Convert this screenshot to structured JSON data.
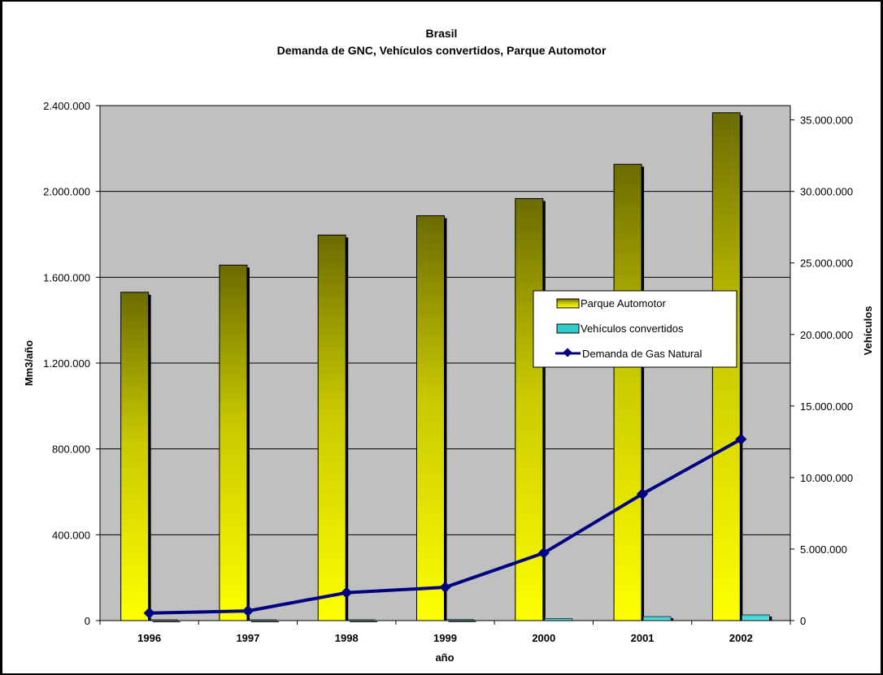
{
  "chart_data": {
    "type": "bar",
    "title": "Brasil",
    "subtitle": "Demanda de GNC, Vehículos convertidos, Parque Automotor",
    "xlabel": "año",
    "ylabel": "Mm3/año",
    "y2label": "Vehículos",
    "categories": [
      "1996",
      "1997",
      "1998",
      "1999",
      "2000",
      "2001",
      "2002"
    ],
    "ylim": [
      0,
      2400000
    ],
    "y2lim": [
      0,
      36000000
    ],
    "yticks": [
      "0",
      "400.000",
      "800.000",
      "1.200.000",
      "1.600.000",
      "2.000.000",
      "2.400.000"
    ],
    "y2ticks": [
      "0",
      "5.000.000",
      "10.000.000",
      "15.000.000",
      "20.000.000",
      "25.000.000",
      "30.000.000",
      "35.000.000"
    ],
    "grid": true,
    "legend_position": "center-right",
    "series": [
      {
        "name": "Parque Automotor",
        "type": "bar",
        "axis": "right",
        "color": "#ffff00",
        "color_top": "#6b6b00",
        "values": [
          22950000,
          24850000,
          26950000,
          28300000,
          29500000,
          31900000,
          35500000
        ]
      },
      {
        "name": "Vehículos convertidos",
        "type": "bar",
        "axis": "right",
        "color": "#33cccc",
        "values": [
          10000,
          15000,
          40000,
          70000,
          140000,
          280000,
          400000
        ]
      },
      {
        "name": "Demanda de Gas Natural",
        "type": "line",
        "axis": "left",
        "color": "#000080",
        "values": [
          35000,
          45000,
          130000,
          155000,
          315000,
          590000,
          845000
        ]
      }
    ]
  }
}
